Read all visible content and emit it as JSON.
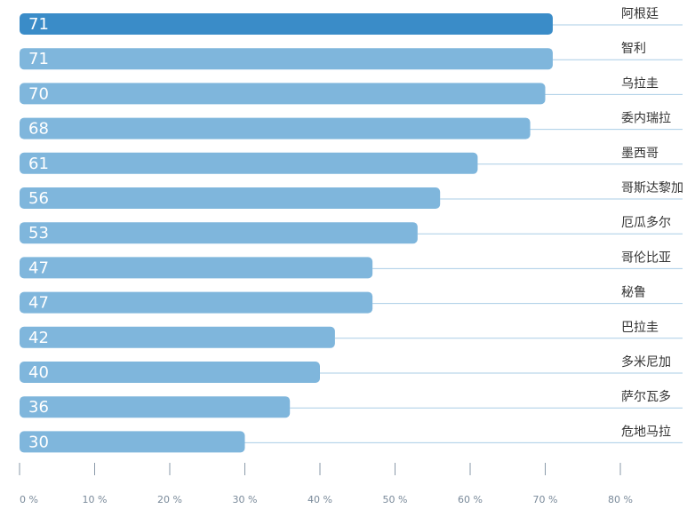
{
  "chart_data": {
    "type": "bar",
    "orientation": "horizontal",
    "categories": [
      "阿根廷",
      "智利",
      "乌拉圭",
      "委内瑞拉",
      "墨西哥",
      "哥斯达黎加",
      "厄瓜多尔",
      "哥伦比亚",
      "秘鲁",
      "巴拉圭",
      "多米尼加",
      "萨尔瓦多",
      "危地马拉"
    ],
    "values": [
      71,
      71,
      70,
      68,
      61,
      56,
      53,
      47,
      47,
      42,
      40,
      36,
      30
    ],
    "value_labels": [
      "71",
      "71",
      "70",
      "68",
      "61",
      "56",
      "53",
      "47",
      "47",
      "42",
      "40",
      "36",
      "30"
    ],
    "xlim": [
      0,
      80
    ],
    "xticks": [
      0,
      10,
      20,
      30,
      40,
      50,
      60,
      70,
      80
    ],
    "xtick_labels": [
      "0 %",
      "10 %",
      "20 %",
      "30 %",
      "40 %",
      "50 %",
      "60 %",
      "70 %",
      "80 %"
    ],
    "grid": false,
    "highlight_index": 0,
    "colors": {
      "bar": "#7fb6dc",
      "highlight": "#3a8cc8",
      "leader": "#a9cde6",
      "axis": "#8a9aaa"
    }
  }
}
